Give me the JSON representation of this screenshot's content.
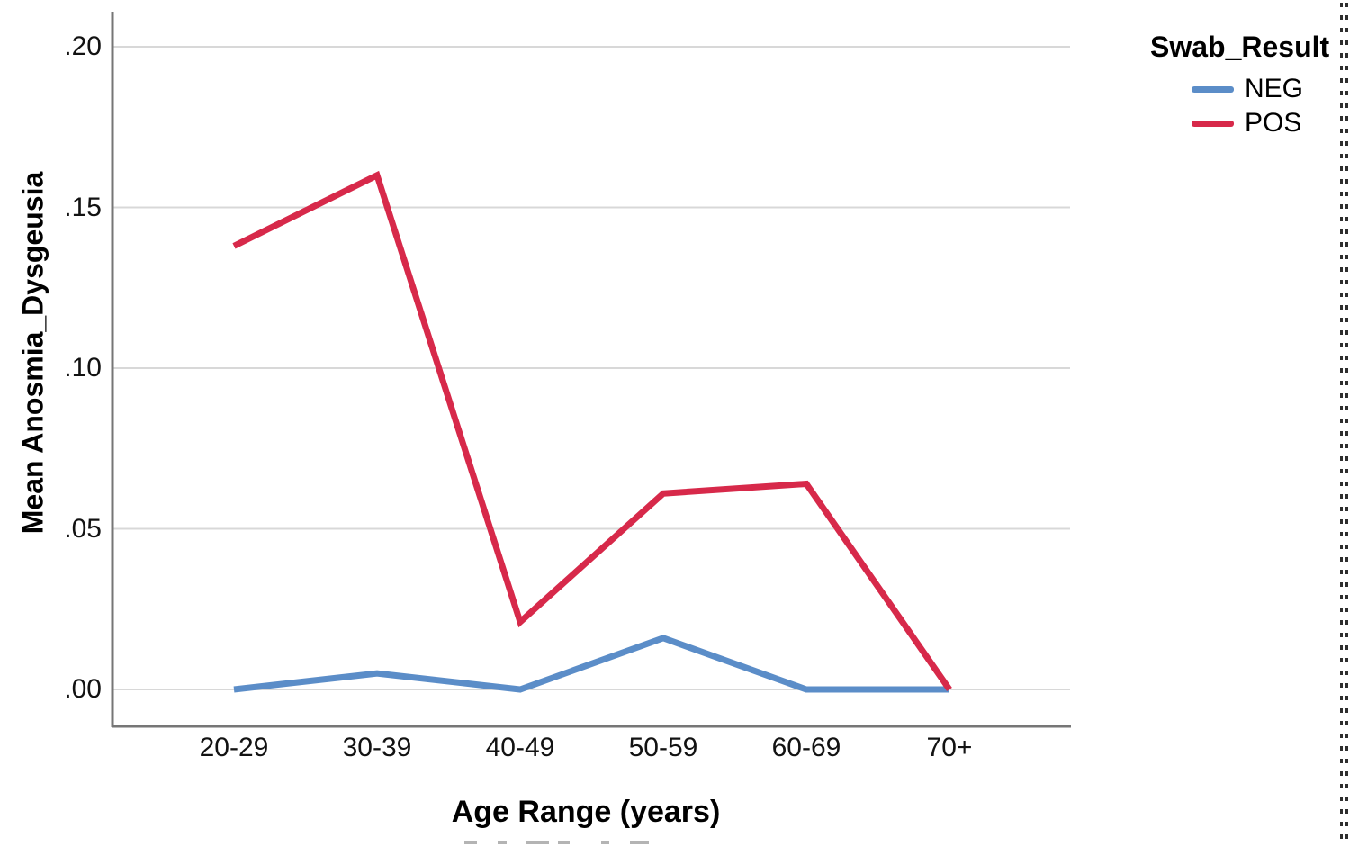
{
  "figure": {
    "kind": "SPSS-style line chart",
    "background": "#ffffff",
    "axis_color": "#767676",
    "gridline_color": "#d8d8d8",
    "text_color": "#000000"
  },
  "chart_data": {
    "type": "line",
    "title": "",
    "categories": [
      "20-29",
      "30-39",
      "40-49",
      "50-59",
      "60-69",
      "70+"
    ],
    "series": [
      {
        "name": "NEG",
        "color": "#5b8dc8",
        "values": [
          0.0,
          0.005,
          0.0,
          0.016,
          0.0,
          0.0
        ]
      },
      {
        "name": "POS",
        "color": "#d7294a",
        "values": [
          0.138,
          0.16,
          0.021,
          0.061,
          0.064,
          0.0
        ]
      }
    ],
    "xlabel": "Age Range (years)",
    "ylabel": "Mean Anosmia_Dysgeusia",
    "legend_title": "Swab_Result",
    "legend_position": "right",
    "yticks": [
      ".00",
      ".05",
      ".10",
      ".15",
      ".20"
    ],
    "ytick_values": [
      0.0,
      0.05,
      0.1,
      0.15,
      0.2
    ],
    "ylim": [
      -0.011,
      0.211
    ],
    "grid": "horizontal"
  }
}
